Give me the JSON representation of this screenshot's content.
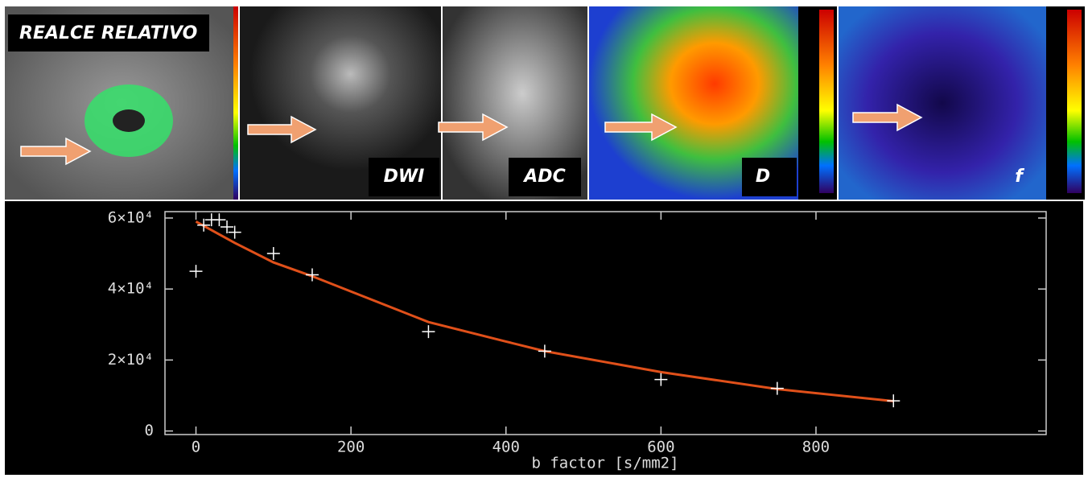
{
  "panels": [
    "REALCE RELATIVO",
    "DWI",
    "ADC",
    "D",
    "f"
  ],
  "chart_data": {
    "type": "scatter",
    "x_label": "b factor [s/mm2]",
    "xlim": [
      -40,
      1097
    ],
    "xticks": [
      0,
      200,
      400,
      600,
      800
    ],
    "ylim": [
      -1000,
      61800
    ],
    "yticks": [
      0,
      {
        "value": 20000,
        "label": "2×10⁴"
      },
      {
        "value": 40000,
        "label": "4×10⁴"
      },
      {
        "value": 60000,
        "label": "6×10⁴"
      }
    ],
    "points": {
      "color": "#ffffff",
      "x": [
        0,
        10,
        20,
        30,
        40,
        50,
        100,
        150,
        300,
        450,
        600,
        750,
        900
      ],
      "values": [
        45000,
        58000,
        59500,
        59500,
        57500,
        56000,
        50000,
        44000,
        28000,
        22500,
        14500,
        12000,
        8500
      ]
    },
    "fit": {
      "color": "#e0501a",
      "x": [
        0,
        50,
        100,
        150,
        200,
        300,
        400,
        450,
        600,
        750,
        900
      ],
      "values": [
        59000,
        53000,
        47500,
        43600,
        39300,
        30700,
        25200,
        22500,
        16600,
        11800,
        8400
      ]
    }
  }
}
